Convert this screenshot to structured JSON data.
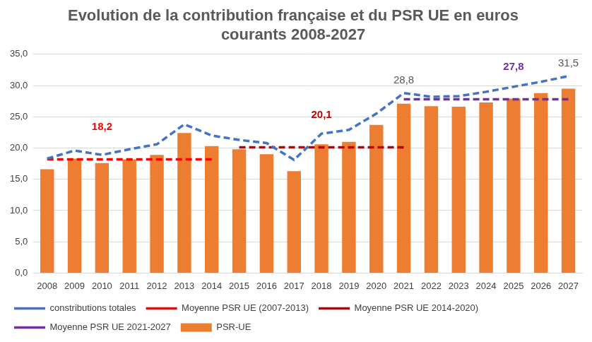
{
  "chart_data": {
    "type": "bar",
    "title": [
      "Evolution de la contribution française et du PSR UE en euros",
      "courants 2008-2027"
    ],
    "categories": [
      "2008",
      "2009",
      "2010",
      "2011",
      "2012",
      "2013",
      "2014",
      "2015",
      "2016",
      "2017",
      "2018",
      "2019",
      "2020",
      "2021",
      "2022",
      "2023",
      "2024",
      "2025",
      "2026",
      "2027"
    ],
    "series": [
      {
        "name": "PSR-UE",
        "type": "bar",
        "color": "#ed7d31",
        "values": [
          16.6,
          18.3,
          17.6,
          18.2,
          18.9,
          22.4,
          20.3,
          19.8,
          19.0,
          16.3,
          20.6,
          21.0,
          23.7,
          27.1,
          26.7,
          26.6,
          27.3,
          27.9,
          28.8,
          29.5
        ]
      },
      {
        "name": "constributions totales",
        "type": "line",
        "line_style": "dashed",
        "color": "#4472c4",
        "values": [
          18.3,
          19.6,
          18.9,
          19.8,
          20.6,
          23.8,
          22.0,
          21.3,
          20.8,
          18.1,
          22.3,
          22.9,
          25.5,
          28.8,
          28.2,
          28.3,
          29.0,
          29.8,
          30.6,
          31.5
        ]
      },
      {
        "name": "Moyenne PSR UE (2007-2013)",
        "type": "line",
        "line_style": "dashed",
        "color": "#ff0000",
        "values": [
          18.2,
          18.2,
          18.2,
          18.2,
          18.2,
          18.2,
          18.2,
          null,
          null,
          null,
          null,
          null,
          null,
          null,
          null,
          null,
          null,
          null,
          null,
          null
        ]
      },
      {
        "name": "Moyenne PSR UE 2014-2020)",
        "type": "line",
        "line_style": "dashed",
        "color": "#c00000",
        "values": [
          null,
          null,
          null,
          null,
          null,
          null,
          null,
          20.1,
          20.1,
          20.1,
          20.1,
          20.1,
          20.1,
          20.1,
          null,
          null,
          null,
          null,
          null,
          null
        ]
      },
      {
        "name": "Moyenne PSR UE 2021-2027",
        "type": "line",
        "line_style": "dashed",
        "color": "#7030a0",
        "values": [
          null,
          null,
          null,
          null,
          null,
          null,
          null,
          null,
          null,
          null,
          null,
          null,
          null,
          27.8,
          27.8,
          27.8,
          27.8,
          27.8,
          27.8,
          27.8
        ]
      }
    ],
    "annotations": [
      {
        "text": "18,2",
        "category": "2010",
        "value": 18.2,
        "series": "Moyenne PSR UE (2007-2013)",
        "color": "#ff0000"
      },
      {
        "text": "20,1",
        "category": "2018",
        "value": 20.1,
        "series": "Moyenne PSR UE 2014-2020)",
        "color": "#c00000"
      },
      {
        "text": "28,8",
        "category": "2021",
        "value": 28.8,
        "series": "constributions totales",
        "color": "#595959"
      },
      {
        "text": "27,8",
        "category": "2025",
        "value": 27.8,
        "series": "Moyenne PSR UE 2021-2027",
        "color": "#7030a0"
      },
      {
        "text": "31,5",
        "category": "2027",
        "value": 31.5,
        "series": "constributions totales",
        "color": "#595959"
      }
    ],
    "ylim": [
      0,
      35
    ],
    "yticks": [
      {
        "value": 0,
        "label": "0,0"
      },
      {
        "value": 5,
        "label": "5,0"
      },
      {
        "value": 10,
        "label": "10,0"
      },
      {
        "value": 15,
        "label": "15,0"
      },
      {
        "value": 20,
        "label": "20,0"
      },
      {
        "value": 25,
        "label": "25,0"
      },
      {
        "value": 30,
        "label": "30,0"
      },
      {
        "value": 35,
        "label": "35,0"
      }
    ],
    "grid": true,
    "legend": "bottom"
  }
}
